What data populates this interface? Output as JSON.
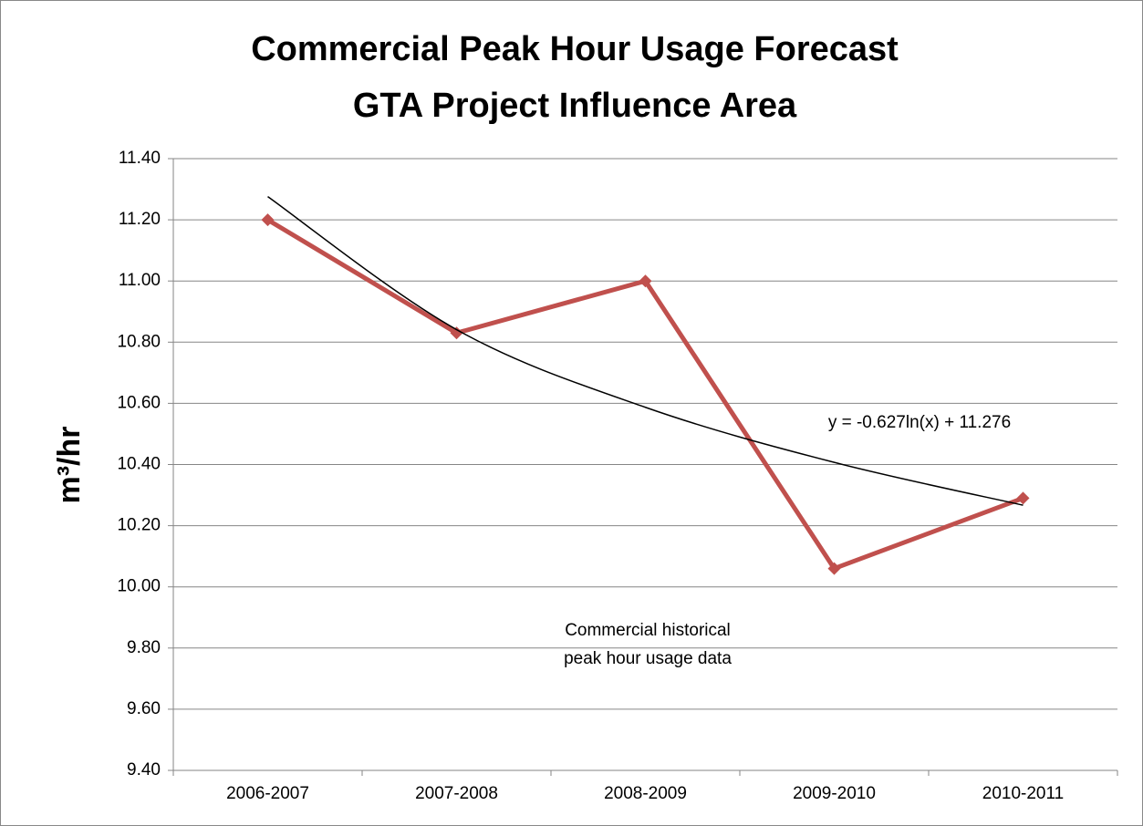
{
  "chart_data": {
    "type": "line",
    "title": "Commercial Peak Hour Usage Forecast",
    "subtitle": "GTA Project Influence Area",
    "y_label": "m³/hr",
    "categories": [
      "2006-2007",
      "2007-2008",
      "2008-2009",
      "2009-2010",
      "2010-2011"
    ],
    "series": [
      {
        "name": "Commercial historical peak hour usage data",
        "color": "#c0504d",
        "values": [
          11.2,
          10.83,
          11.0,
          10.06,
          10.29
        ]
      }
    ],
    "trendline": {
      "label": "y = -0.627ln(x) + 11.276",
      "color": "#000000",
      "values": [
        11.276,
        10.841,
        10.587,
        10.407,
        10.267
      ]
    },
    "ylim": [
      9.4,
      11.4
    ],
    "yticks": [
      {
        "value": 9.4,
        "label": "9.40"
      },
      {
        "value": 9.6,
        "label": "9.60"
      },
      {
        "value": 9.8,
        "label": "9.80"
      },
      {
        "value": 10.0,
        "label": "10.00"
      },
      {
        "value": 10.2,
        "label": "10.20"
      },
      {
        "value": 10.4,
        "label": "10.40"
      },
      {
        "value": 10.6,
        "label": "10.60"
      },
      {
        "value": 10.8,
        "label": "10.80"
      },
      {
        "value": 11.0,
        "label": "11.00"
      },
      {
        "value": 11.2,
        "label": "11.20"
      },
      {
        "value": 11.4,
        "label": "11.40"
      }
    ],
    "grid": true
  }
}
